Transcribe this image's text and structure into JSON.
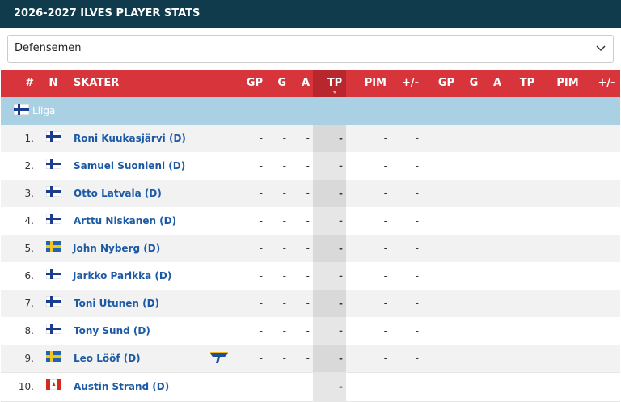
{
  "header": {
    "title": "2026-2027 ILVES PLAYER STATS"
  },
  "filter": {
    "selected": "Defensemen"
  },
  "table": {
    "columns": [
      "#",
      "N",
      "SKATER",
      "GP",
      "G",
      "A",
      "TP",
      "PIM",
      "+/-",
      "GP",
      "G",
      "A",
      "TP",
      "PIM",
      "+/-"
    ],
    "league": "Liiga",
    "rows": [
      [
        "1.",
        "Roni Kuukasjärvi (D)",
        "-",
        "-",
        "-",
        "-",
        "-",
        "-"
      ],
      [
        "2.",
        "Samuel Suonieni (D)",
        "-",
        "-",
        "-",
        "-",
        "-",
        "-"
      ],
      [
        "3.",
        "Otto Latvala (D)",
        "-",
        "-",
        "-",
        "-",
        "-",
        "-"
      ],
      [
        "4.",
        "Arttu Niskanen (D)",
        "-",
        "-",
        "-",
        "-",
        "-",
        "-"
      ],
      [
        "5.",
        "John Nyberg (D)",
        "-",
        "-",
        "-",
        "-",
        "-",
        "-"
      ],
      [
        "6.",
        "Jarkko Parikka (D)",
        "-",
        "-",
        "-",
        "-",
        "-",
        "-"
      ],
      [
        "7.",
        "Toni Utunen (D)",
        "-",
        "-",
        "-",
        "-",
        "-",
        "-"
      ],
      [
        "8.",
        "Tony Sund (D)",
        "-",
        "-",
        "-",
        "-",
        "-",
        "-"
      ],
      [
        "9.",
        "Leo Lööf (D)",
        "-",
        "-",
        "-",
        "-",
        "-",
        "-"
      ],
      [
        "10.",
        "Austin Strand (D)",
        "-",
        "-",
        "-",
        "-",
        "-",
        "-"
      ]
    ]
  }
}
